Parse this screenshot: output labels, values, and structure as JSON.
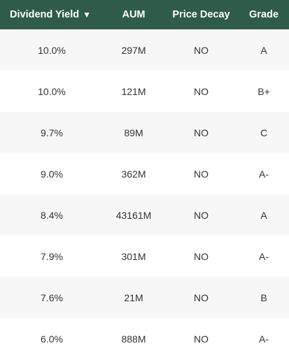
{
  "table": {
    "headers": {
      "yield": "Dividend Yield",
      "sort_indicator": "▼",
      "aum": "AUM",
      "decay": "Price Decay",
      "grade": "Grade"
    },
    "rows": [
      {
        "yield": "10.0%",
        "aum": "297M",
        "decay": "NO",
        "grade": "A"
      },
      {
        "yield": "10.0%",
        "aum": "121M",
        "decay": "NO",
        "grade": "B+"
      },
      {
        "yield": "9.7%",
        "aum": "89M",
        "decay": "NO",
        "grade": "C"
      },
      {
        "yield": "9.0%",
        "aum": "362M",
        "decay": "NO",
        "grade": "A-"
      },
      {
        "yield": "8.4%",
        "aum": "43161M",
        "decay": "NO",
        "grade": "A"
      },
      {
        "yield": "7.9%",
        "aum": "301M",
        "decay": "NO",
        "grade": "A-"
      },
      {
        "yield": "7.6%",
        "aum": "21M",
        "decay": "NO",
        "grade": "B"
      },
      {
        "yield": "6.0%",
        "aum": "888M",
        "decay": "NO",
        "grade": "A-"
      }
    ]
  },
  "colors": {
    "header_bg": "#2f5b4a",
    "header_text": "#ffffff",
    "row_alt_bg": "#f7f7f7",
    "row_bg": "#ffffff",
    "cell_text": "#333333"
  }
}
